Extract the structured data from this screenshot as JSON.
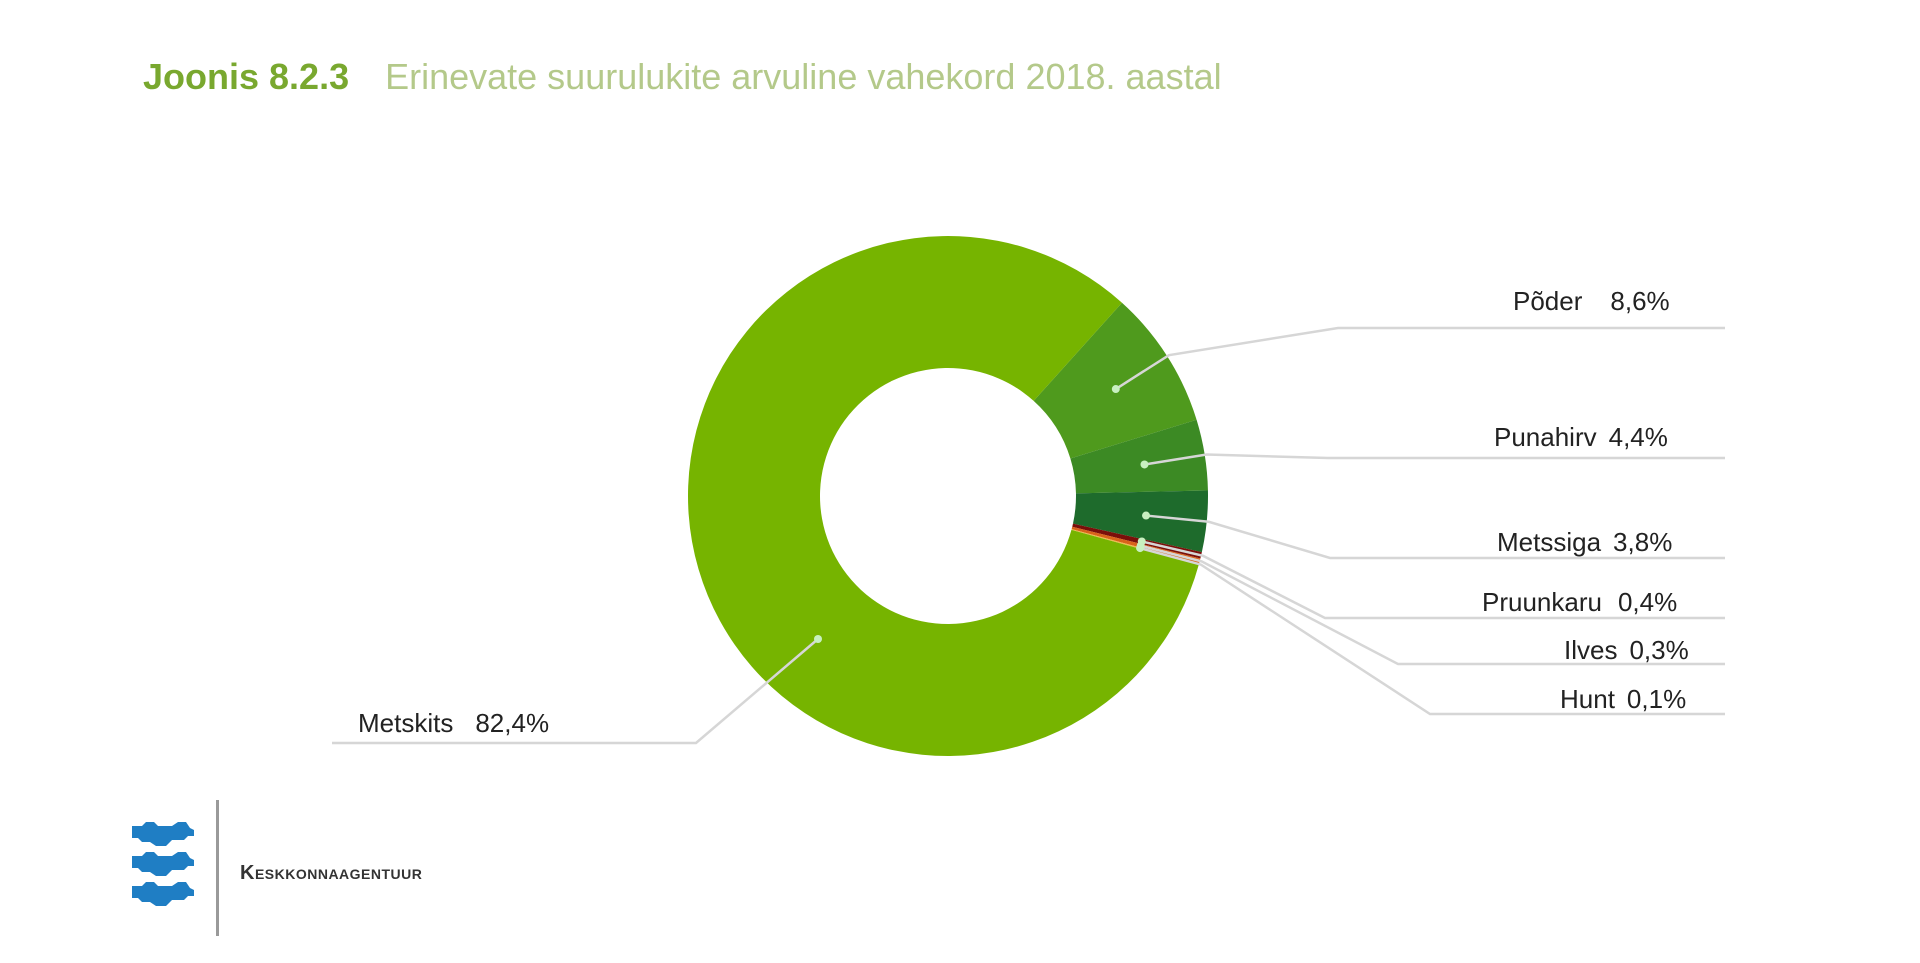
{
  "header": {
    "figure_number": "Joonis 8.2.3",
    "title": "Erinevate suurulukite arvuline vahekord 2018. aastal"
  },
  "footer": {
    "organization": "Keskkonnaagentuur",
    "logo_icon": "estonian-three-lions-coat-of-arms-icon"
  },
  "colors": {
    "metskits": "#76b400",
    "poder": "#4f9a1d",
    "punahirv": "#3c8a24",
    "metssiga": "#1e6b2c",
    "pruunkaru": "#7a0f0a",
    "ilves": "#d9631a",
    "hunt": "#f0b94a",
    "title_green": "#79a82f",
    "subtitle_green": "#b4c98a",
    "leader_line": "#d6d6d6",
    "logo_blue": "#1f7ec4"
  },
  "chart_data": {
    "type": "pie",
    "variant": "donut",
    "title": "Joonis 8.2.3 Erinevate suurulukite arvuline vahekord 2018. aastal",
    "categories": [
      "Metskits",
      "Põder",
      "Punahirv",
      "Metssiga",
      "Pruunkaru",
      "Ilves",
      "Hunt"
    ],
    "values": [
      82.4,
      8.6,
      4.4,
      3.8,
      0.4,
      0.3,
      0.1
    ],
    "value_labels": [
      "82,4%",
      "8,6%",
      "4,4%",
      "3,8%",
      "0,4%",
      "0,3%",
      "0,1%"
    ],
    "unit": "%",
    "legend": "none (direct labels with leader lines)"
  },
  "labels": [
    {
      "name": "Põder",
      "value": "8,6%"
    },
    {
      "name": "Punahirv",
      "value": "4,4%"
    },
    {
      "name": "Metssiga",
      "value": "3,8%"
    },
    {
      "name": "Pruunkaru",
      "value": "0,4%"
    },
    {
      "name": "Ilves",
      "value": "0,3%"
    },
    {
      "name": "Hunt",
      "value": "0,1%"
    },
    {
      "name": "Metskits",
      "value": "82,4%"
    }
  ]
}
